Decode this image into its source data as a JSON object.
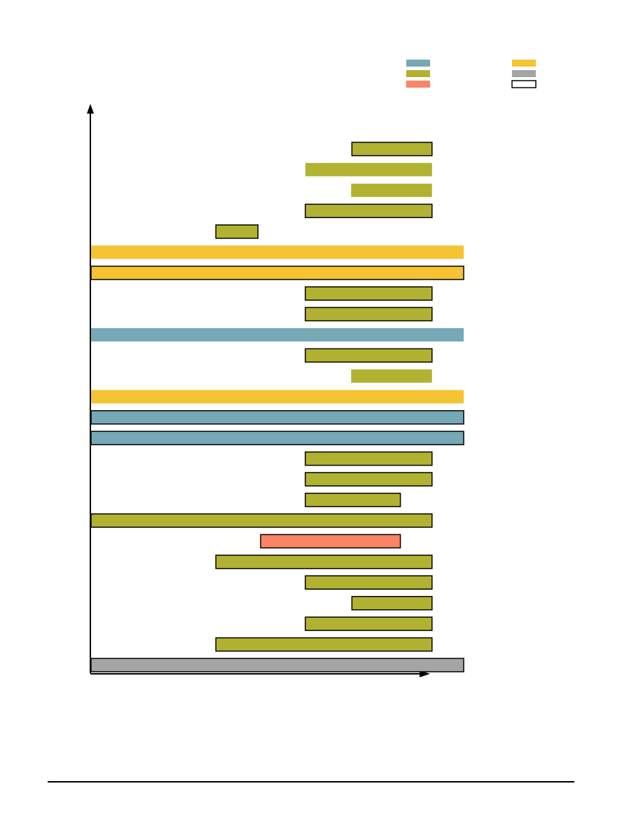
{
  "colors": {
    "blue": "#76a8b6",
    "olive": "#b2b232",
    "salmon": "#fb8465",
    "yellow": "#f6c333",
    "gray": "#a5a5a5",
    "white": "#ffffff",
    "outline": "#000000",
    "axis": "#000000"
  },
  "legend": {
    "placement": "top-right",
    "swatches": [
      {
        "color": "blue",
        "outlined": false
      },
      {
        "color": "olive",
        "outlined": false
      },
      {
        "color": "salmon",
        "outlined": false
      },
      {
        "color": "yellow",
        "outlined": false
      },
      {
        "color": "gray",
        "outlined": false
      },
      {
        "color": "white",
        "outlined": true
      }
    ]
  },
  "chart_data": {
    "type": "bar",
    "orientation": "horizontal",
    "title": "",
    "xlabel": "",
    "ylabel": "",
    "grid": false,
    "xlim": [
      0,
      100
    ],
    "rows": [
      {
        "start": 70,
        "end": 91.5,
        "color": "olive",
        "outlined": true
      },
      {
        "start": 57.5,
        "end": 91.5,
        "color": "olive",
        "outlined": false
      },
      {
        "start": 69.8,
        "end": 91.5,
        "color": "olive",
        "outlined": false
      },
      {
        "start": 57.5,
        "end": 91.5,
        "color": "olive",
        "outlined": true
      },
      {
        "start": 33.5,
        "end": 44.8,
        "color": "olive",
        "outlined": true
      },
      {
        "start": 0,
        "end": 100,
        "color": "yellow",
        "outlined": false
      },
      {
        "start": 0,
        "end": 100,
        "color": "yellow",
        "outlined": true
      },
      {
        "start": 57.5,
        "end": 91.5,
        "color": "olive",
        "outlined": true
      },
      {
        "start": 57.5,
        "end": 91.5,
        "color": "olive",
        "outlined": true
      },
      {
        "start": 0,
        "end": 100,
        "color": "blue",
        "outlined": false
      },
      {
        "start": 57.5,
        "end": 91.5,
        "color": "olive",
        "outlined": true
      },
      {
        "start": 69.8,
        "end": 91.5,
        "color": "olive",
        "outlined": false
      },
      {
        "start": 0,
        "end": 100,
        "color": "yellow",
        "outlined": false
      },
      {
        "start": 0,
        "end": 100,
        "color": "blue",
        "outlined": true
      },
      {
        "start": 0,
        "end": 100,
        "color": "blue",
        "outlined": true
      },
      {
        "start": 57.5,
        "end": 91.5,
        "color": "olive",
        "outlined": true
      },
      {
        "start": 57.5,
        "end": 91.5,
        "color": "olive",
        "outlined": true
      },
      {
        "start": 57.5,
        "end": 83,
        "color": "olive",
        "outlined": true
      },
      {
        "start": 0,
        "end": 91.5,
        "color": "olive",
        "outlined": true
      },
      {
        "start": 45.5,
        "end": 83,
        "color": "salmon",
        "outlined": true
      },
      {
        "start": 33.5,
        "end": 91.5,
        "color": "olive",
        "outlined": true
      },
      {
        "start": 57.5,
        "end": 91.5,
        "color": "olive",
        "outlined": true
      },
      {
        "start": 70,
        "end": 91.5,
        "color": "olive",
        "outlined": true
      },
      {
        "start": 57.5,
        "end": 91.5,
        "color": "olive",
        "outlined": true
      },
      {
        "start": 33.5,
        "end": 91.5,
        "color": "olive",
        "outlined": true
      },
      {
        "start": 0,
        "end": 100,
        "color": "gray",
        "outlined": true
      }
    ]
  }
}
